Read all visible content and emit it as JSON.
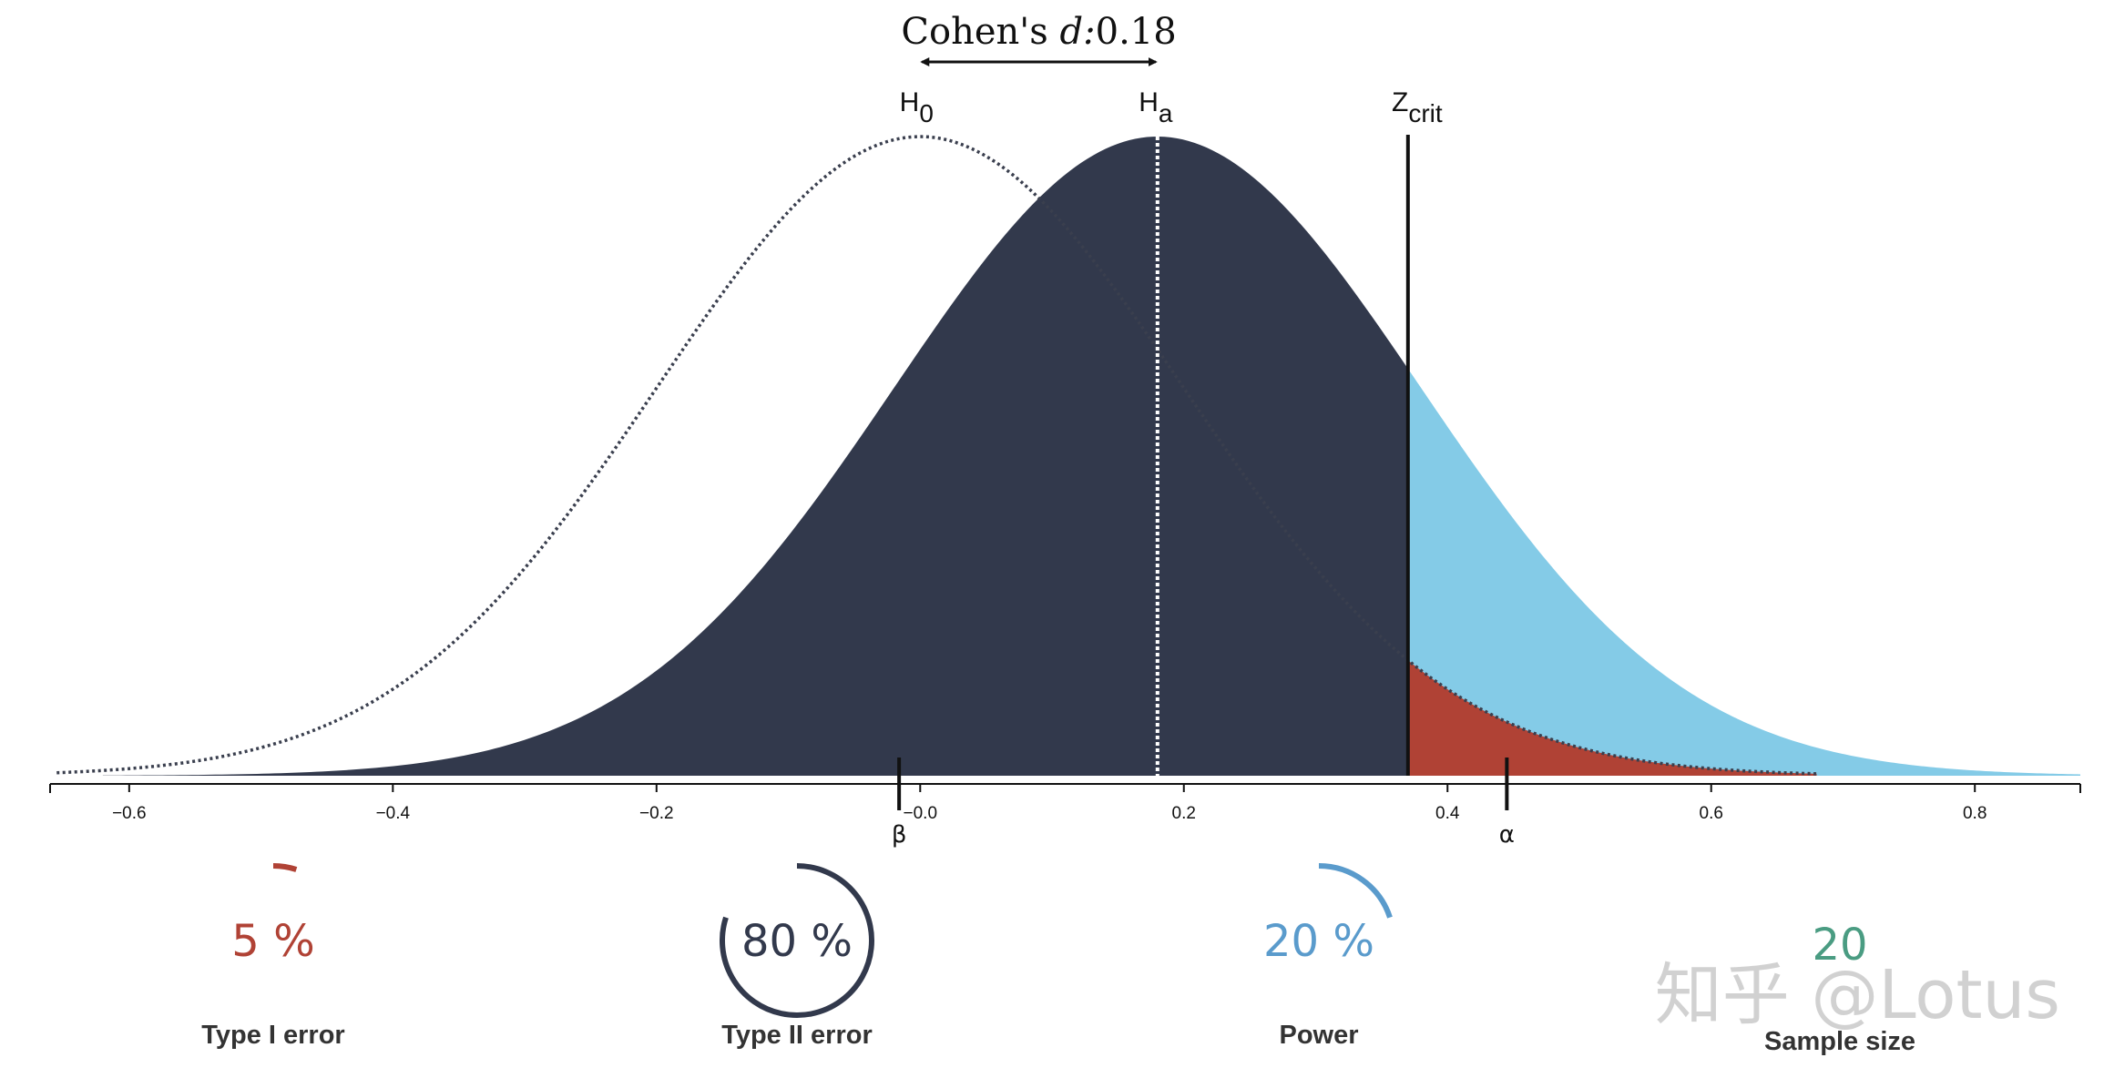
{
  "chart_data": {
    "type": "area",
    "title": {
      "prefix": "Cohen's ",
      "d_symbol": "d",
      "colon": ":",
      "value": "0.18"
    },
    "null_hypothesis": {
      "label_main": "H",
      "label_sub": "0",
      "mean": 0.0,
      "sd": 0.2
    },
    "alt_hypothesis": {
      "label_main": "H",
      "label_sub": "a",
      "mean": 0.18,
      "sd": 0.2
    },
    "z_crit": {
      "label_main": "Z",
      "label_sub": "crit",
      "value": 0.37
    },
    "x_axis": {
      "range": [
        -0.66,
        0.88
      ],
      "ticks": [
        -0.6,
        -0.4,
        -0.2,
        0.0,
        0.2,
        0.4,
        0.6,
        0.8
      ],
      "tick_labels": [
        "−0.6",
        "−0.4",
        "−0.2",
        "−0.0",
        "0.2",
        "0.4",
        "0.6",
        "0.8"
      ]
    },
    "markers": [
      {
        "symbol": "β",
        "x": -0.016
      },
      {
        "symbol": "α",
        "x": 0.445
      }
    ],
    "colors": {
      "alt_fill": "#32394c",
      "power_fill": "#84cbe7",
      "alpha_fill": "#b04235",
      "null_curve": "#3a3f4e",
      "ha_line": "#ffffff",
      "axis": "#111111"
    },
    "stats": [
      {
        "id": "type1",
        "value": "5 %",
        "caption": "Type I error",
        "fraction": 0.05,
        "color": "#b04235"
      },
      {
        "id": "type2",
        "value": "80 %",
        "caption": "Type II error",
        "fraction": 0.8,
        "color": "#32394c"
      },
      {
        "id": "power",
        "value": "20 %",
        "caption": "Power",
        "fraction": 0.2,
        "color": "#5a9bcc"
      },
      {
        "id": "n",
        "value": "20",
        "caption": "Sample size",
        "color": "#4a9c82"
      }
    ]
  },
  "watermark": "知乎 @Lotus"
}
